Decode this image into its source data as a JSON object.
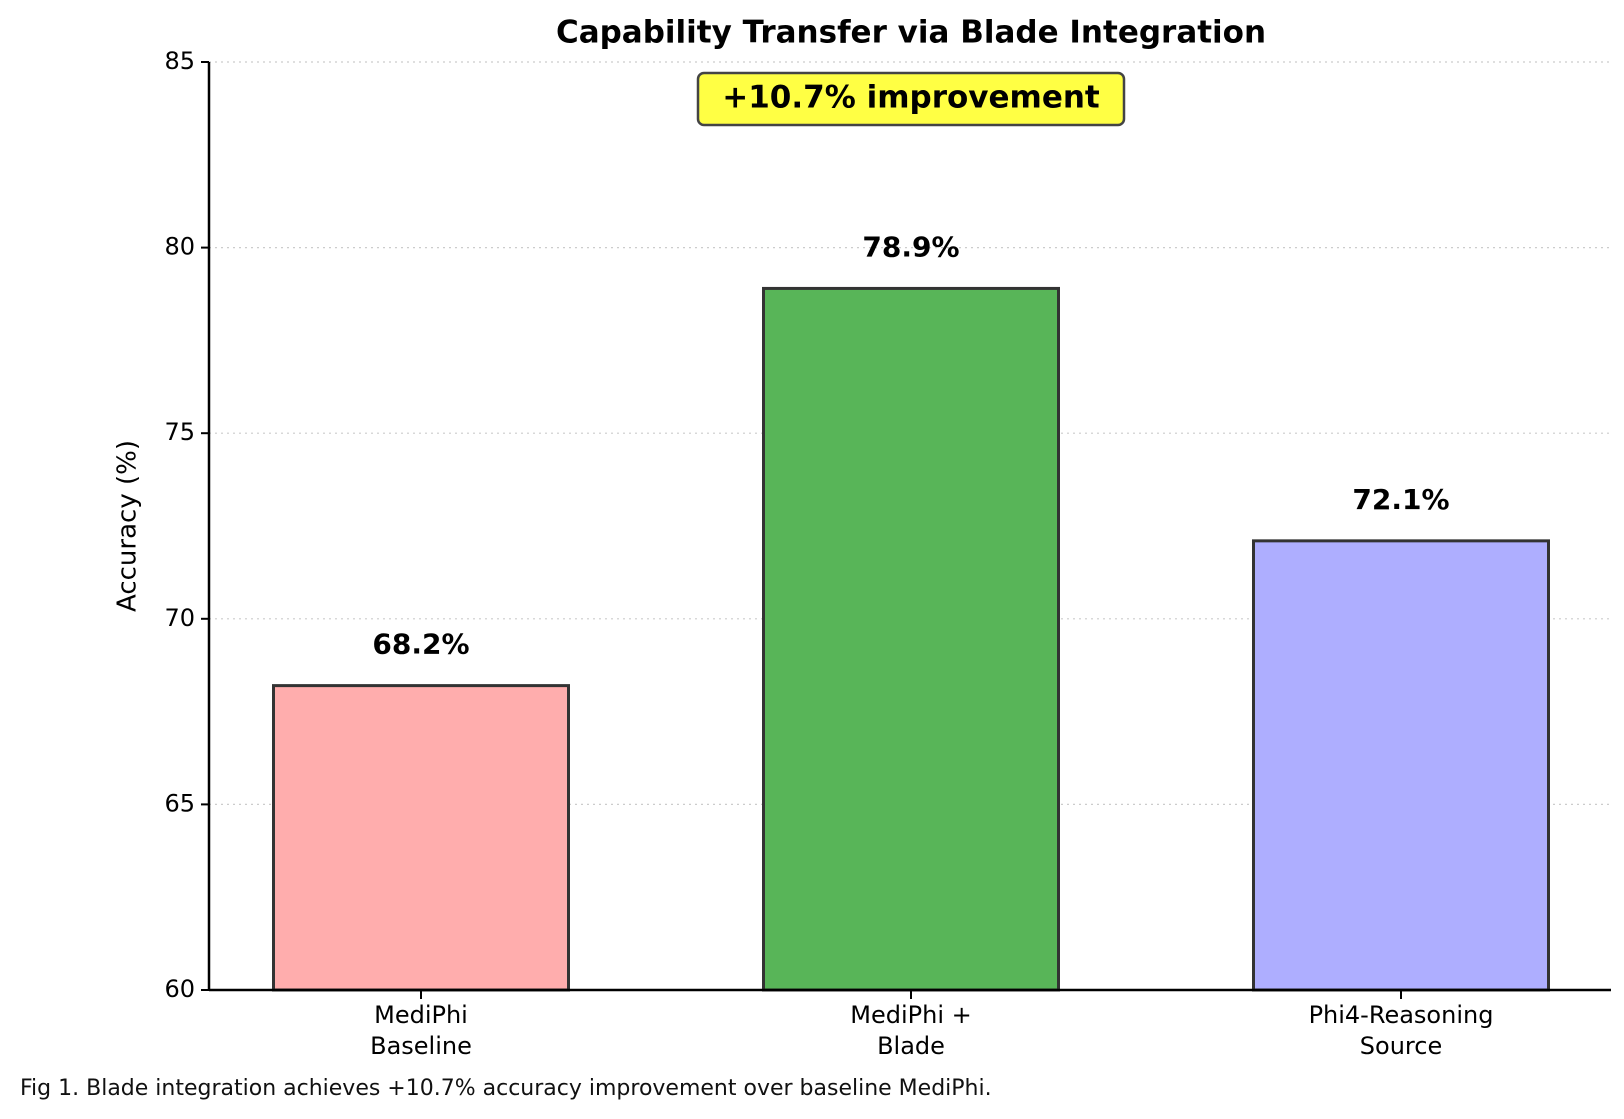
{
  "chart_data": {
    "type": "bar",
    "title": "Capability Transfer via Blade Integration",
    "annotation": "+10.7% improvement",
    "ylabel": "Accuracy (%)",
    "caption": "Fig 1. Blade integration achieves +10.7% accuracy improvement over baseline MediPhi.",
    "categories": [
      "MediPhi\nBaseline",
      "MediPhi +\nBlade",
      "Phi4-Reasoning\nSource"
    ],
    "values": [
      68.2,
      78.9,
      72.1
    ],
    "value_labels": [
      "68.2%",
      "78.9%",
      "72.1%"
    ],
    "colors": [
      "#ffadad",
      "#58b558",
      "#aeaeff"
    ],
    "ylim": [
      60,
      85
    ],
    "yticks": [
      60,
      65,
      70,
      75,
      80,
      85
    ],
    "grid": true
  }
}
